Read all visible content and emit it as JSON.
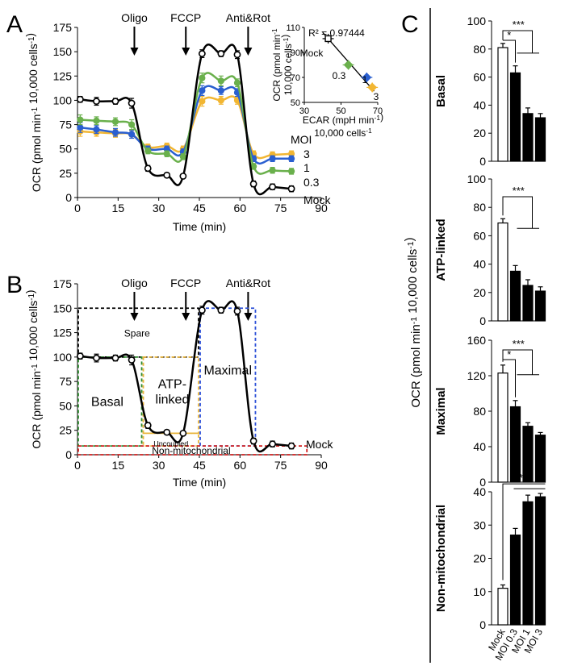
{
  "panels": {
    "A": "A",
    "B": "B",
    "C": "C"
  },
  "colors": {
    "mock": "#000000",
    "moi_0_3": "#6ab04c",
    "moi_1": "#2a5fd0",
    "moi_3": "#f2b632",
    "spare": "#000000",
    "basal": "#2e8b2e",
    "atp": "#e8b43a",
    "maximal": "#2b4fd8",
    "nonmito": "#d01c1c"
  },
  "chart_data": [
    {
      "panel": "A",
      "type": "line",
      "xlabel": "Time (min)",
      "ylabel": "OCR (pmol min-1 10,000 cells-1)",
      "xlim": [
        0,
        90
      ],
      "ylim": [
        0,
        175
      ],
      "xticks": [
        0,
        15,
        30,
        45,
        60,
        75,
        90
      ],
      "yticks": [
        0,
        25,
        50,
        75,
        100,
        125,
        150,
        175
      ],
      "injections": [
        {
          "label": "Oligo",
          "x": 21
        },
        {
          "label": "FCCP",
          "x": 40
        },
        {
          "label": "Anti&Rot",
          "x": 63
        }
      ],
      "legend_title": "MOI",
      "x": [
        1,
        7,
        14,
        20,
        26,
        33,
        39,
        46,
        53,
        59,
        65,
        72,
        79
      ],
      "series": [
        {
          "name": "Mock",
          "color": "#000000",
          "values": [
            101,
            99,
            99,
            97,
            30,
            23,
            22,
            148,
            148,
            147,
            14,
            11,
            9
          ],
          "err": [
            3,
            4,
            3,
            5,
            3,
            2,
            2,
            4,
            3,
            4,
            3,
            3,
            3
          ]
        },
        {
          "name": "0.3",
          "color": "#6ab04c",
          "values": [
            80,
            79,
            78,
            75,
            48,
            45,
            42,
            123,
            120,
            118,
            32,
            28,
            27
          ],
          "err": [
            5,
            4,
            4,
            5,
            3,
            3,
            3,
            5,
            5,
            4,
            3,
            3,
            3
          ]
        },
        {
          "name": "1",
          "color": "#2a5fd0",
          "values": [
            72,
            70,
            67,
            65,
            50,
            50,
            47,
            110,
            110,
            108,
            40,
            40,
            40
          ],
          "err": [
            5,
            4,
            4,
            4,
            3,
            3,
            3,
            5,
            4,
            4,
            3,
            3,
            3
          ]
        },
        {
          "name": "3",
          "color": "#f2b632",
          "values": [
            68,
            67,
            66,
            65,
            52,
            53,
            50,
            99,
            100,
            100,
            45,
            44,
            45
          ],
          "err": [
            5,
            4,
            4,
            4,
            3,
            3,
            3,
            5,
            4,
            4,
            3,
            3,
            3
          ]
        }
      ]
    },
    {
      "panel": "A-inset",
      "type": "scatter",
      "xlabel": "ECAR (mpH min-1 10,000 cells-1)",
      "ylabel": "OCR (pmol min-1 10,000 cells-1)",
      "xlim": [
        30,
        70
      ],
      "ylim": [
        50,
        110
      ],
      "xticks": [
        30,
        50,
        70
      ],
      "yticks": [
        50,
        70,
        90,
        110
      ],
      "annotation": "R² = 0.97444",
      "points": [
        {
          "label": "Mock",
          "x": 43,
          "y": 101,
          "color": "#000000"
        },
        {
          "label": "0.3",
          "x": 54,
          "y": 80,
          "color": "#6ab04c"
        },
        {
          "label": "1",
          "x": 64,
          "y": 70,
          "color": "#2a5fd0"
        },
        {
          "label": "3",
          "x": 67,
          "y": 62,
          "color": "#f2b632"
        }
      ]
    },
    {
      "panel": "B",
      "type": "line",
      "xlabel": "Time (min)",
      "ylabel": "OCR (pmol min-1 10,000 cells-1)",
      "xlim": [
        0,
        90
      ],
      "ylim": [
        0,
        175
      ],
      "xticks": [
        0,
        15,
        30,
        45,
        60,
        75,
        90
      ],
      "yticks": [
        0,
        25,
        50,
        75,
        100,
        125,
        150,
        175
      ],
      "injections": [
        {
          "label": "Oligo",
          "x": 21
        },
        {
          "label": "FCCP",
          "x": 40
        },
        {
          "label": "Anti&Rot",
          "x": 63
        }
      ],
      "x": [
        1,
        7,
        14,
        20,
        26,
        33,
        39,
        46,
        53,
        59,
        65,
        72,
        79
      ],
      "series": [
        {
          "name": "Mock",
          "color": "#000000",
          "values": [
            101,
            99,
            99,
            97,
            30,
            23,
            22,
            148,
            148,
            147,
            14,
            11,
            9
          ],
          "err": [
            3,
            4,
            3,
            5,
            3,
            2,
            2,
            4,
            3,
            4,
            3,
            3,
            3
          ]
        }
      ],
      "regions": [
        {
          "label": "Spare",
          "color": "#000000",
          "x0": 0,
          "x1": 45,
          "y0": 100,
          "y1": 150
        },
        {
          "label": "Basal",
          "color": "#2e8b2e",
          "x0": 0,
          "x1": 24,
          "y0": 9,
          "y1": 100
        },
        {
          "label": "ATP-\nlinked",
          "color": "#e8b43a",
          "x0": 24,
          "x1": 45,
          "y0": 22,
          "y1": 100
        },
        {
          "label": "Uncoupled",
          "color": "#e8b43a",
          "x0": 24,
          "x1": 45,
          "y0": 9,
          "y1": 22
        },
        {
          "label": "Maximal",
          "color": "#2b4fd8",
          "x0": 45,
          "x1": 66,
          "y0": 9,
          "y1": 150
        },
        {
          "label": "Non-mitochondrial",
          "color": "#d01c1c",
          "x0": 0,
          "x1": 85,
          "y0": 0,
          "y1": 9
        }
      ]
    },
    {
      "panel": "C",
      "type": "bar",
      "ylabel": "OCR (pmol min-1 10,000 cells-1)",
      "categories": [
        "Mock",
        "MOI 0.3",
        "MOI 1",
        "MOI 3"
      ],
      "subplots": [
        {
          "title": "Basal",
          "ylim": [
            0,
            100
          ],
          "yticks": [
            0,
            20,
            40,
            60,
            80,
            100
          ],
          "values": [
            81,
            63,
            34,
            31
          ],
          "err": [
            3,
            5,
            4,
            3
          ],
          "sig": [
            "*",
            "***"
          ]
        },
        {
          "title": "ATP-linked",
          "ylim": [
            0,
            100
          ],
          "yticks": [
            0,
            20,
            40,
            60,
            80,
            100
          ],
          "values": [
            69,
            35,
            25,
            21
          ],
          "err": [
            3,
            4,
            4,
            3
          ],
          "sig": [
            "***"
          ]
        },
        {
          "title": "Maximal",
          "ylim": [
            0,
            160
          ],
          "yticks": [
            0,
            40,
            80,
            120,
            160
          ],
          "values": [
            123,
            85,
            63,
            53
          ],
          "err": [
            9,
            7,
            4,
            3
          ],
          "sig": [
            "*",
            "***"
          ]
        },
        {
          "title": "Non-mitochondrial",
          "ylim": [
            0,
            40
          ],
          "yticks": [
            0,
            10,
            20,
            30,
            40
          ],
          "values": [
            11,
            27,
            37,
            38.5
          ],
          "err": [
            1,
            2,
            2,
            1
          ],
          "sig": [
            "***"
          ]
        }
      ]
    }
  ]
}
